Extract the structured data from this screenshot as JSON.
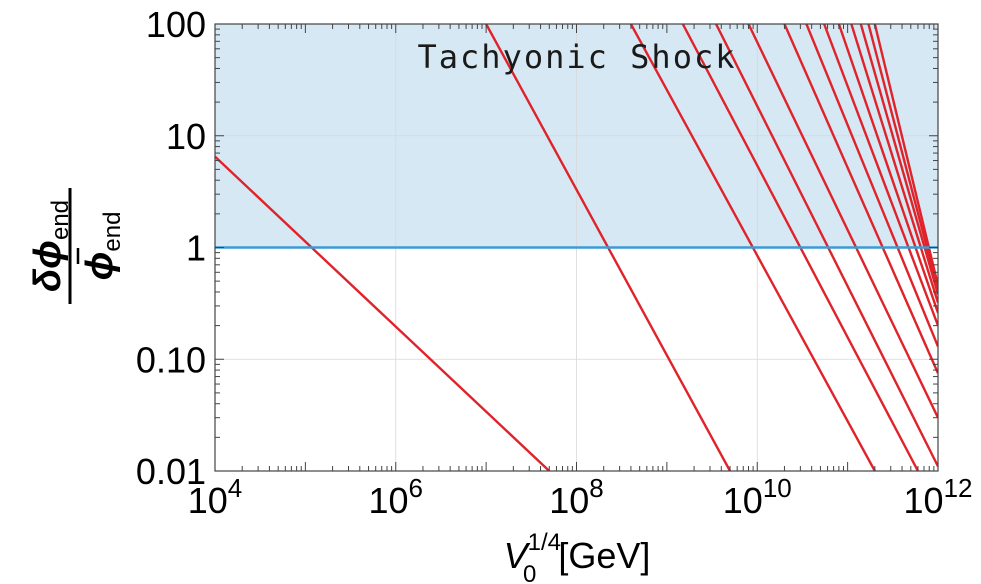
{
  "chart_data": {
    "type": "line",
    "xscale": "log",
    "yscale": "log",
    "xlim": [
      10000,
      1000000000000
    ],
    "ylim": [
      0.01,
      100
    ],
    "grid": true,
    "x_ticks": [
      {
        "value": 10000,
        "base": "10",
        "exp": "4"
      },
      {
        "value": 1000000,
        "base": "10",
        "exp": "6"
      },
      {
        "value": 100000000,
        "base": "10",
        "exp": "8"
      },
      {
        "value": 10000000000,
        "base": "10",
        "exp": "10"
      },
      {
        "value": 1000000000000,
        "base": "10",
        "exp": "12"
      }
    ],
    "y_ticks": [
      {
        "value": 0.01,
        "label": "0.01"
      },
      {
        "value": 0.1,
        "label": "0.10"
      },
      {
        "value": 1,
        "label": "1"
      },
      {
        "value": 10,
        "label": "10"
      },
      {
        "value": 100,
        "label": "100"
      }
    ],
    "xlabel": {
      "main": "V",
      "sub": "0",
      "sup": "1/4",
      "unit": "[GeV]"
    },
    "ylabel": {
      "numerator": {
        "main": "δϕ",
        "sub": "end"
      },
      "denominator": {
        "main": "ϕ",
        "sub": "end"
      }
    },
    "shaded_region": {
      "label": "Tachyonic Shock",
      "y_from": 1,
      "y_to": 100,
      "color": "#d6e8f3"
    },
    "threshold": {
      "y": 1,
      "color": "#3b9bd4"
    },
    "line_color": "#e0232a",
    "series": [
      {
        "points": [
          [
            10000,
            6.5
          ],
          [
            50000000,
            0.01
          ]
        ]
      },
      {
        "points": [
          [
            10000000,
            100
          ],
          [
            5000000000,
            0.01
          ]
        ]
      },
      {
        "points": [
          [
            400000000,
            100
          ],
          [
            200000000000,
            0.01
          ]
        ]
      },
      {
        "points": [
          [
            1500000000,
            100
          ],
          [
            600000000000,
            0.01
          ]
        ]
      },
      {
        "points": [
          [
            3500000000,
            100
          ],
          [
            1000000000000,
            0.011
          ]
        ]
      },
      {
        "points": [
          [
            8000000000,
            100
          ],
          [
            1000000000000,
            0.03
          ]
        ]
      },
      {
        "points": [
          [
            20000000000,
            100
          ],
          [
            1000000000000,
            0.075
          ]
        ]
      },
      {
        "points": [
          [
            35000000000,
            100
          ],
          [
            1000000000000,
            0.13
          ]
        ]
      },
      {
        "points": [
          [
            55000000000,
            100
          ],
          [
            1000000000000,
            0.2
          ]
        ]
      },
      {
        "points": [
          [
            80000000000,
            100
          ],
          [
            1000000000000,
            0.26
          ]
        ]
      },
      {
        "points": [
          [
            110000000000,
            100
          ],
          [
            1000000000000,
            0.32
          ]
        ]
      },
      {
        "points": [
          [
            140000000000,
            100
          ],
          [
            1000000000000,
            0.38
          ]
        ]
      },
      {
        "points": [
          [
            170000000000,
            100
          ],
          [
            1000000000000,
            0.42
          ]
        ]
      },
      {
        "points": [
          [
            200000000000,
            100
          ],
          [
            1000000000000,
            0.46
          ]
        ]
      }
    ]
  }
}
